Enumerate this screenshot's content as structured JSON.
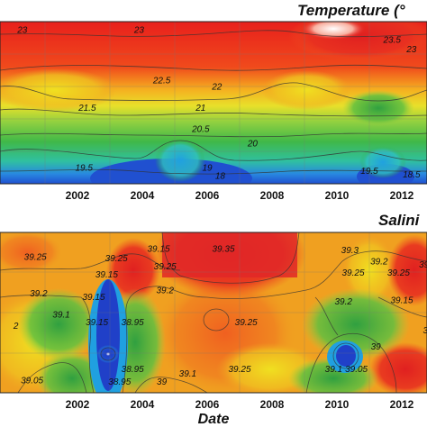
{
  "chart_data": [
    {
      "type": "heatmap",
      "title": "Temperature (°",
      "xlabel": "",
      "ylabel": "",
      "x_ticks": [
        "2002",
        "2004",
        "2006",
        "2008",
        "2010",
        "2012"
      ],
      "xlim": [
        "2000",
        "2014"
      ],
      "colorscale": [
        "#1030c0",
        "#20a0e0",
        "#30b040",
        "#80d040",
        "#f0e020",
        "#f0a020",
        "#f05020",
        "#e02020",
        "#ffffff"
      ],
      "contour_labels": [
        {
          "x": "2000.3",
          "y": 0.93,
          "value": "23"
        },
        {
          "x": "2003.9",
          "y": 0.93,
          "value": "23"
        },
        {
          "x": "2004.6",
          "y": 0.62,
          "value": "22.5"
        },
        {
          "x": "2006.3",
          "y": 0.58,
          "value": "22"
        },
        {
          "x": "2002.3",
          "y": 0.45,
          "value": "21.5"
        },
        {
          "x": "2005.8",
          "y": 0.45,
          "value": "21"
        },
        {
          "x": "2005.8",
          "y": 0.32,
          "value": "20.5"
        },
        {
          "x": "2007.4",
          "y": 0.23,
          "value": "20"
        },
        {
          "x": "2002.2",
          "y": 0.08,
          "value": "19.5"
        },
        {
          "x": "2006.0",
          "y": 0.08,
          "value": "19"
        },
        {
          "x": "2006.4",
          "y": 0.03,
          "value": "18"
        },
        {
          "x": "2011.0",
          "y": 0.06,
          "value": "19.5"
        },
        {
          "x": "2012.3",
          "y": 0.04,
          "value": "18.5"
        },
        {
          "x": "2011.7",
          "y": 0.87,
          "value": "23.5"
        },
        {
          "x": "2012.3",
          "y": 0.81,
          "value": "23"
        }
      ]
    },
    {
      "type": "heatmap",
      "title": "Salini",
      "xlabel": "Date",
      "ylabel": "",
      "x_ticks": [
        "2002",
        "2004",
        "2006",
        "2008",
        "2010",
        "2012"
      ],
      "xlim": [
        "2000",
        "2014"
      ],
      "colorscale": [
        "#1030c0",
        "#20a0e0",
        "#30b040",
        "#80d040",
        "#f0e020",
        "#f0a020",
        "#f05020",
        "#e02020"
      ],
      "contour_labels": [
        {
          "x": "2000.7",
          "y": 0.83,
          "value": "39.25"
        },
        {
          "x": "2000.8",
          "y": 0.6,
          "value": "39.2"
        },
        {
          "x": "2002.5",
          "y": 0.58,
          "value": "39.15"
        },
        {
          "x": "2001.5",
          "y": 0.47,
          "value": "39.1"
        },
        {
          "x": "2002.6",
          "y": 0.42,
          "value": "39.15"
        },
        {
          "x": "2002.9",
          "y": 0.72,
          "value": "39.15"
        },
        {
          "x": "2003.2",
          "y": 0.82,
          "value": "39.25"
        },
        {
          "x": "2004.5",
          "y": 0.88,
          "value": "39.15"
        },
        {
          "x": "2004.7",
          "y": 0.77,
          "value": "39.25"
        },
        {
          "x": "2004.7",
          "y": 0.62,
          "value": "39.2"
        },
        {
          "x": "2003.7",
          "y": 0.42,
          "value": "38.95"
        },
        {
          "x": "2003.7",
          "y": 0.13,
          "value": "38.95"
        },
        {
          "x": "2003.3",
          "y": 0.05,
          "value": "38.95"
        },
        {
          "x": "2004.6",
          "y": 0.05,
          "value": "39"
        },
        {
          "x": "2005.4",
          "y": 0.1,
          "value": "39.1"
        },
        {
          "x": "2006.5",
          "y": 0.88,
          "value": "39.35"
        },
        {
          "x": "2007.2",
          "y": 0.42,
          "value": "39.25"
        },
        {
          "x": "2007.0",
          "y": 0.13,
          "value": "39.25"
        },
        {
          "x": "2000.6",
          "y": 0.06,
          "value": "39.05"
        },
        {
          "x": "2010.4",
          "y": 0.87,
          "value": "39.3"
        },
        {
          "x": "2010.5",
          "y": 0.73,
          "value": "39.25"
        },
        {
          "x": "2010.2",
          "y": 0.55,
          "value": "39.2"
        },
        {
          "x": "2011.3",
          "y": 0.8,
          "value": "39.2"
        },
        {
          "x": "2011.9",
          "y": 0.73,
          "value": "39.25"
        },
        {
          "x": "2012.8",
          "y": 0.78,
          "value": "39.2"
        },
        {
          "x": "2012.0",
          "y": 0.56,
          "value": "39.15"
        },
        {
          "x": "2013.0",
          "y": 0.37,
          "value": "39.15"
        },
        {
          "x": "2011.2",
          "y": 0.27,
          "value": "39"
        },
        {
          "x": "2009.9",
          "y": 0.13,
          "value": "39.1"
        },
        {
          "x": "2010.6",
          "y": 0.13,
          "value": "39.05"
        },
        {
          "x": "2000.1",
          "y": 0.4,
          "value": "2"
        }
      ]
    }
  ]
}
